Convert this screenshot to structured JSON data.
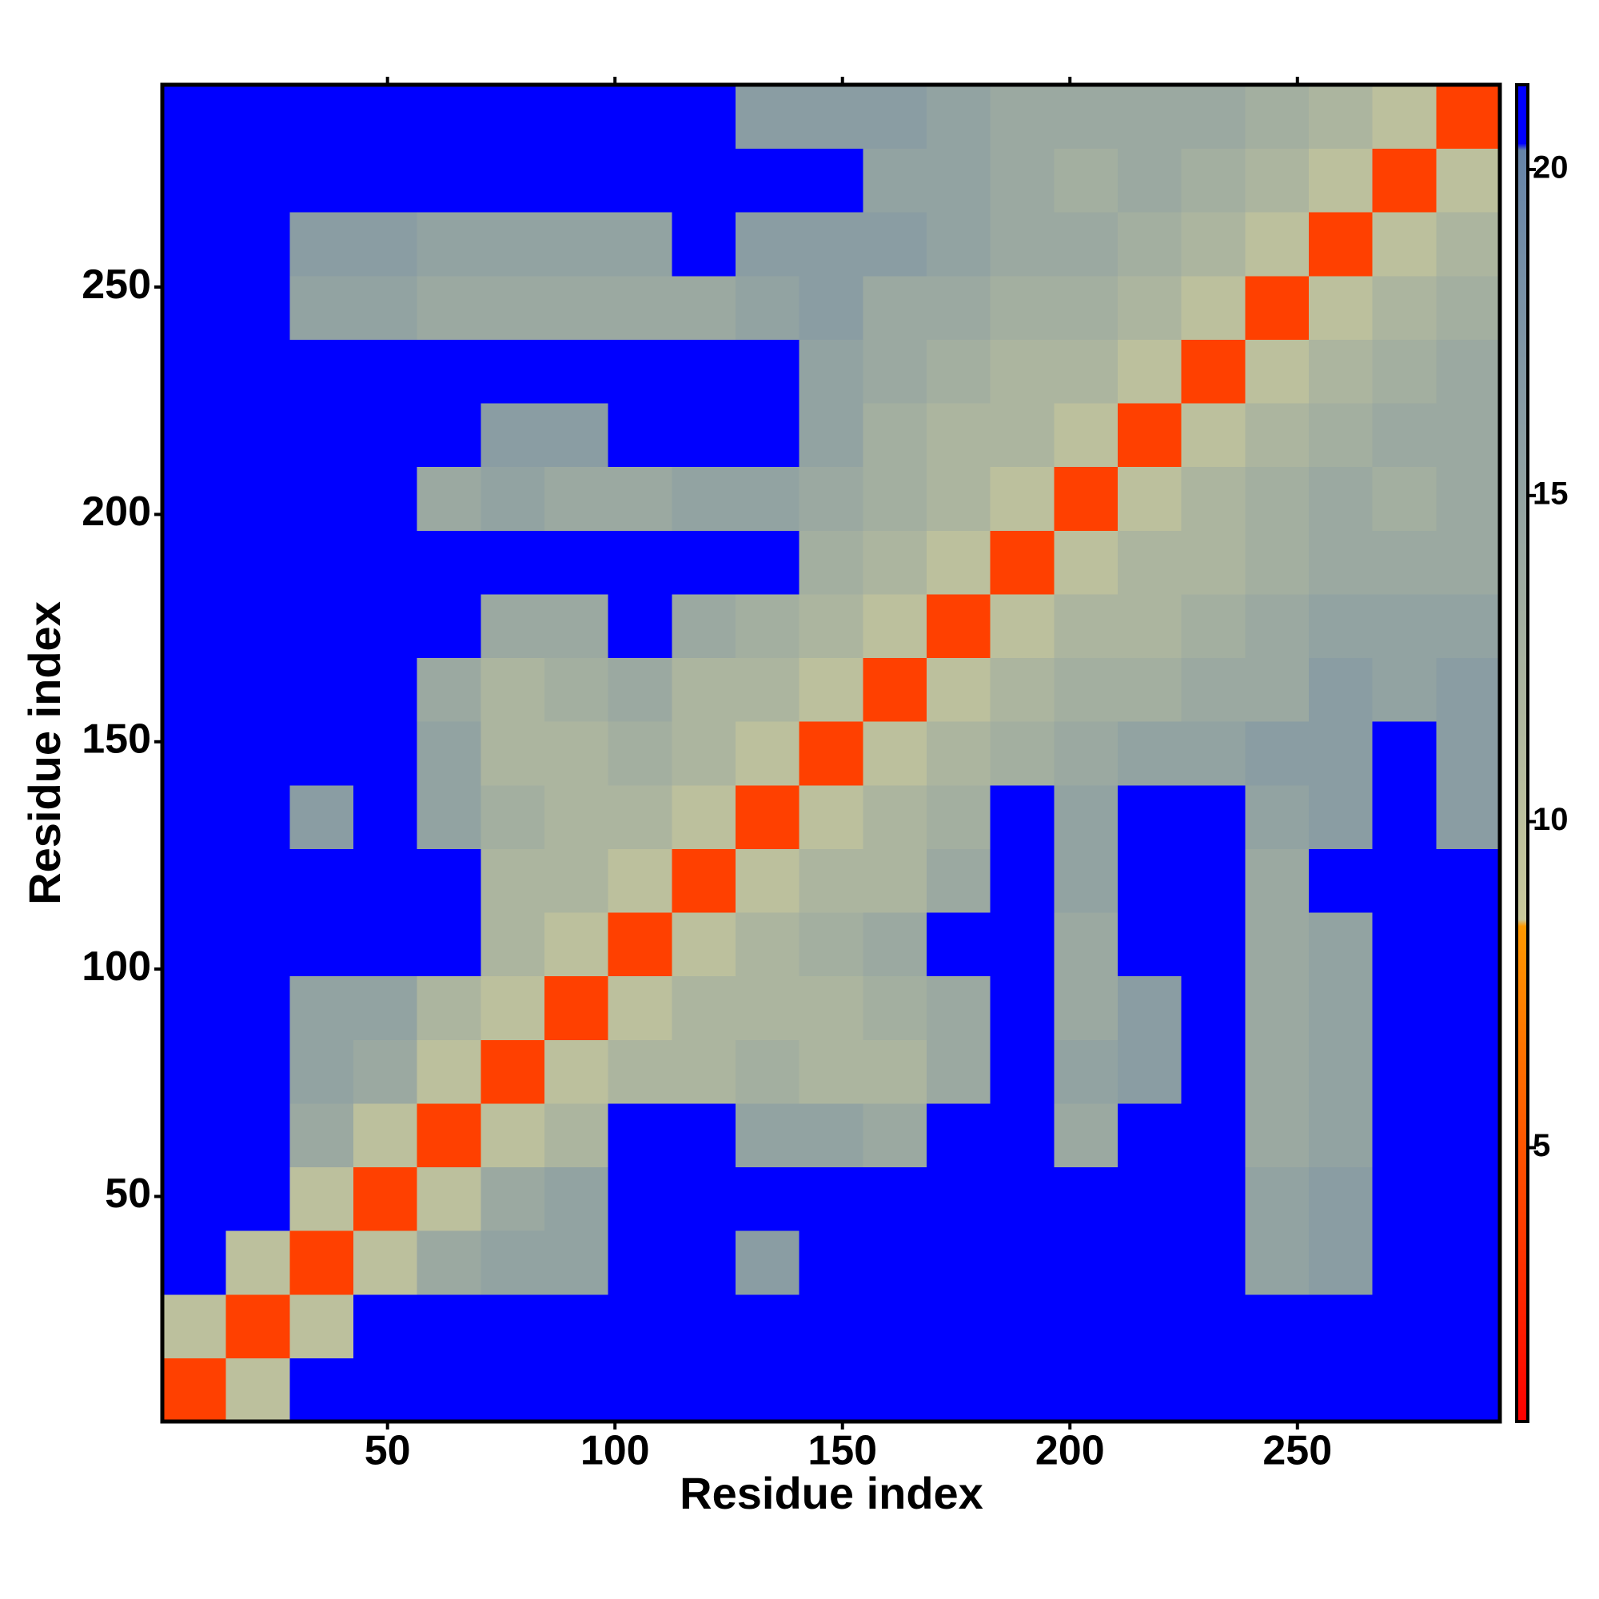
{
  "chart_data": {
    "type": "heatmap",
    "xlabel": "Residue index",
    "ylabel": "Residue index",
    "x_edges": [
      0.5,
      14.5,
      28.5,
      42.5,
      56.5,
      70.5,
      84.5,
      98.5,
      112.5,
      126.5,
      140.5,
      154.5,
      168.5,
      182.5,
      196.5,
      210.5,
      224.5,
      238.5,
      252.5,
      266.5,
      280.5,
      294.5
    ],
    "y_edges": [
      0.5,
      14.5,
      28.5,
      42.5,
      56.5,
      70.5,
      84.5,
      98.5,
      112.5,
      126.5,
      140.5,
      154.5,
      168.5,
      182.5,
      196.5,
      210.5,
      224.5,
      238.5,
      252.5,
      266.5,
      280.5,
      294.5
    ],
    "xlim": [
      0.5,
      294.5
    ],
    "ylim": [
      0.5,
      294.5
    ],
    "xticks": [
      50,
      100,
      150,
      200,
      250
    ],
    "yticks": [
      50,
      100,
      150,
      200,
      250
    ],
    "z": [
      [
        4,
        10,
        21,
        21,
        21,
        21,
        21,
        21,
        21,
        21,
        21,
        21,
        21,
        21,
        21,
        21,
        21,
        21,
        21,
        21,
        21
      ],
      [
        10,
        4,
        10,
        21,
        21,
        21,
        21,
        21,
        21,
        21,
        21,
        21,
        21,
        21,
        21,
        21,
        21,
        21,
        21,
        21,
        21
      ],
      [
        21,
        10,
        4,
        10,
        14,
        15,
        15,
        21,
        21,
        16,
        21,
        21,
        21,
        21,
        21,
        21,
        21,
        15,
        16,
        21,
        21
      ],
      [
        21,
        21,
        10,
        4,
        10,
        14,
        15,
        21,
        21,
        21,
        21,
        21,
        21,
        21,
        21,
        21,
        21,
        15,
        16,
        21,
        21
      ],
      [
        21,
        21,
        14,
        10,
        4,
        10,
        12,
        21,
        21,
        15,
        15,
        14,
        21,
        21,
        14,
        21,
        21,
        14,
        15,
        21,
        21
      ],
      [
        21,
        21,
        15,
        14,
        10,
        4,
        10,
        12,
        12,
        13,
        12,
        12,
        14,
        21,
        15,
        16,
        21,
        14,
        15,
        21,
        21
      ],
      [
        21,
        21,
        15,
        15,
        12,
        10,
        4,
        10,
        12,
        12,
        12,
        13,
        14,
        21,
        14,
        16,
        21,
        14,
        15,
        21,
        21
      ],
      [
        21,
        21,
        21,
        21,
        21,
        12,
        10,
        4,
        10,
        12,
        13,
        14,
        21,
        21,
        14,
        21,
        21,
        14,
        15,
        21,
        21
      ],
      [
        21,
        21,
        21,
        21,
        21,
        12,
        12,
        10,
        4,
        10,
        12,
        12,
        14,
        21,
        15,
        21,
        21,
        14,
        21,
        21,
        21
      ],
      [
        21,
        21,
        16,
        21,
        15,
        13,
        12,
        12,
        10,
        4,
        10,
        12,
        13,
        21,
        15,
        21,
        21,
        15,
        16,
        21,
        16
      ],
      [
        21,
        21,
        21,
        21,
        15,
        12,
        12,
        13,
        12,
        10,
        4,
        10,
        12,
        13,
        14,
        15,
        15,
        16,
        16,
        21,
        16
      ],
      [
        21,
        21,
        21,
        21,
        14,
        12,
        13,
        14,
        12,
        12,
        10,
        4,
        10,
        12,
        13,
        13,
        14,
        14,
        16,
        15,
        16
      ],
      [
        21,
        21,
        21,
        21,
        21,
        14,
        14,
        21,
        14,
        13,
        12,
        10,
        4,
        10,
        12,
        12,
        13,
        14,
        15,
        15,
        15
      ],
      [
        21,
        21,
        21,
        21,
        21,
        21,
        21,
        21,
        21,
        21,
        13,
        12,
        10,
        4,
        10,
        12,
        12,
        13,
        14,
        14,
        14
      ],
      [
        21,
        21,
        21,
        21,
        14,
        15,
        14,
        14,
        15,
        15,
        14,
        13,
        12,
        10,
        4,
        10,
        12,
        13,
        14,
        13,
        14
      ],
      [
        21,
        21,
        21,
        21,
        21,
        16,
        16,
        21,
        21,
        21,
        15,
        13,
        12,
        12,
        10,
        4,
        10,
        12,
        13,
        14,
        14
      ],
      [
        21,
        21,
        21,
        21,
        21,
        21,
        21,
        21,
        21,
        21,
        15,
        14,
        13,
        12,
        12,
        10,
        4,
        10,
        12,
        13,
        14
      ],
      [
        21,
        21,
        15,
        15,
        14,
        14,
        14,
        14,
        14,
        15,
        16,
        14,
        14,
        13,
        13,
        12,
        10,
        4,
        10,
        12,
        13
      ],
      [
        21,
        21,
        16,
        16,
        15,
        15,
        15,
        15,
        21,
        16,
        16,
        16,
        15,
        14,
        14,
        13,
        12,
        10,
        4,
        10,
        12
      ],
      [
        21,
        21,
        21,
        21,
        21,
        21,
        21,
        21,
        21,
        21,
        21,
        15,
        15,
        14,
        13,
        14,
        13,
        12,
        10,
        4,
        10
      ],
      [
        21,
        21,
        21,
        21,
        21,
        21,
        21,
        21,
        21,
        16,
        16,
        16,
        15,
        14,
        14,
        14,
        14,
        13,
        12,
        10,
        4
      ]
    ],
    "zlim": [
      0.8,
      21.3
    ],
    "zticks": [
      5,
      10,
      15,
      20
    ],
    "colorscale": [
      {
        "value": 0.8,
        "color": "#ff0000"
      },
      {
        "value": 8.4,
        "color": "#ff9900"
      },
      {
        "value": 8.5,
        "color": "#c9c99b"
      },
      {
        "value": 20.3,
        "color": "#6684a8"
      },
      {
        "value": 20.4,
        "color": "#0000ff"
      },
      {
        "value": 21.3,
        "color": "#0000ff"
      }
    ]
  }
}
